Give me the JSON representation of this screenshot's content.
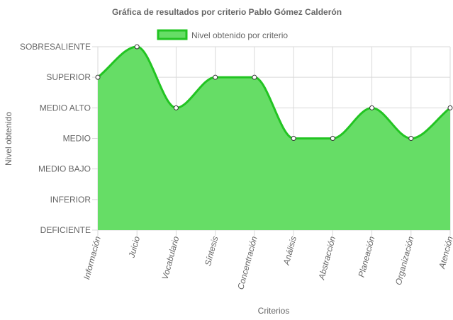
{
  "chart_data": {
    "type": "area",
    "title": "Gráfica de resultados por criterio Pablo Gómez Calderón",
    "xlabel": "Criterios",
    "ylabel": "Nivel obtenido",
    "categories": [
      "Información",
      "Juicio",
      "Vocabulario",
      "Síntesis",
      "Concentración",
      "Análisis",
      "Abstracción",
      "Planeación",
      "Organización",
      "Atención"
    ],
    "levels": [
      "DEFICIENTE",
      "INFERIOR",
      "MEDIO BAJO",
      "MEDIO",
      "MEDIO ALTO",
      "SUPERIOR",
      "SOBRESALIENTE"
    ],
    "ylim": [
      0,
      6
    ],
    "series": [
      {
        "name": "Nivel obtenido por criterio",
        "values": [
          5,
          6,
          4,
          5,
          5,
          3,
          3,
          4,
          3,
          4
        ]
      }
    ],
    "legend_position": "top",
    "grid": true,
    "colors": {
      "fill": "#66dd66",
      "stroke": "#22c422",
      "grid": "#d9d9d9",
      "point_fill": "#ffffff",
      "point_stroke": "#333333"
    }
  }
}
